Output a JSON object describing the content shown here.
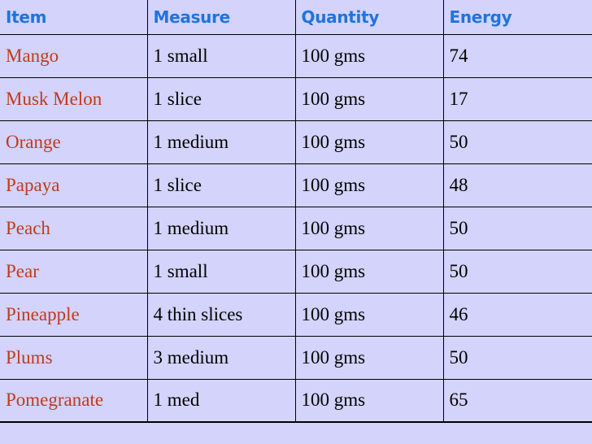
{
  "table": {
    "headers": [
      "Item",
      "Measure",
      "Quantity",
      "Energy"
    ],
    "rows": [
      [
        "Mango",
        "1 small",
        "100 gms",
        "74"
      ],
      [
        "Musk Melon",
        "1 slice",
        "100 gms",
        "17"
      ],
      [
        "Orange",
        "1 medium",
        "100 gms",
        "50"
      ],
      [
        "Papaya",
        "1 slice",
        "100 gms",
        "48"
      ],
      [
        "Peach",
        "1 medium",
        "100 gms",
        "50"
      ],
      [
        "Pear",
        "1 small",
        "100 gms",
        "50"
      ],
      [
        "Pineapple",
        "4 thin slices",
        "100 gms",
        "46"
      ],
      [
        "Plums",
        "3 medium",
        "100 gms",
        "50"
      ],
      [
        "Pomegranate",
        "1 med",
        "100 gms",
        "65"
      ]
    ]
  },
  "colors": {
    "background": "#d3d3fb",
    "header_text": "#1f74dd",
    "item_text": "#c03a1e",
    "body_text": "#000000",
    "grid_lines": "#000000"
  }
}
